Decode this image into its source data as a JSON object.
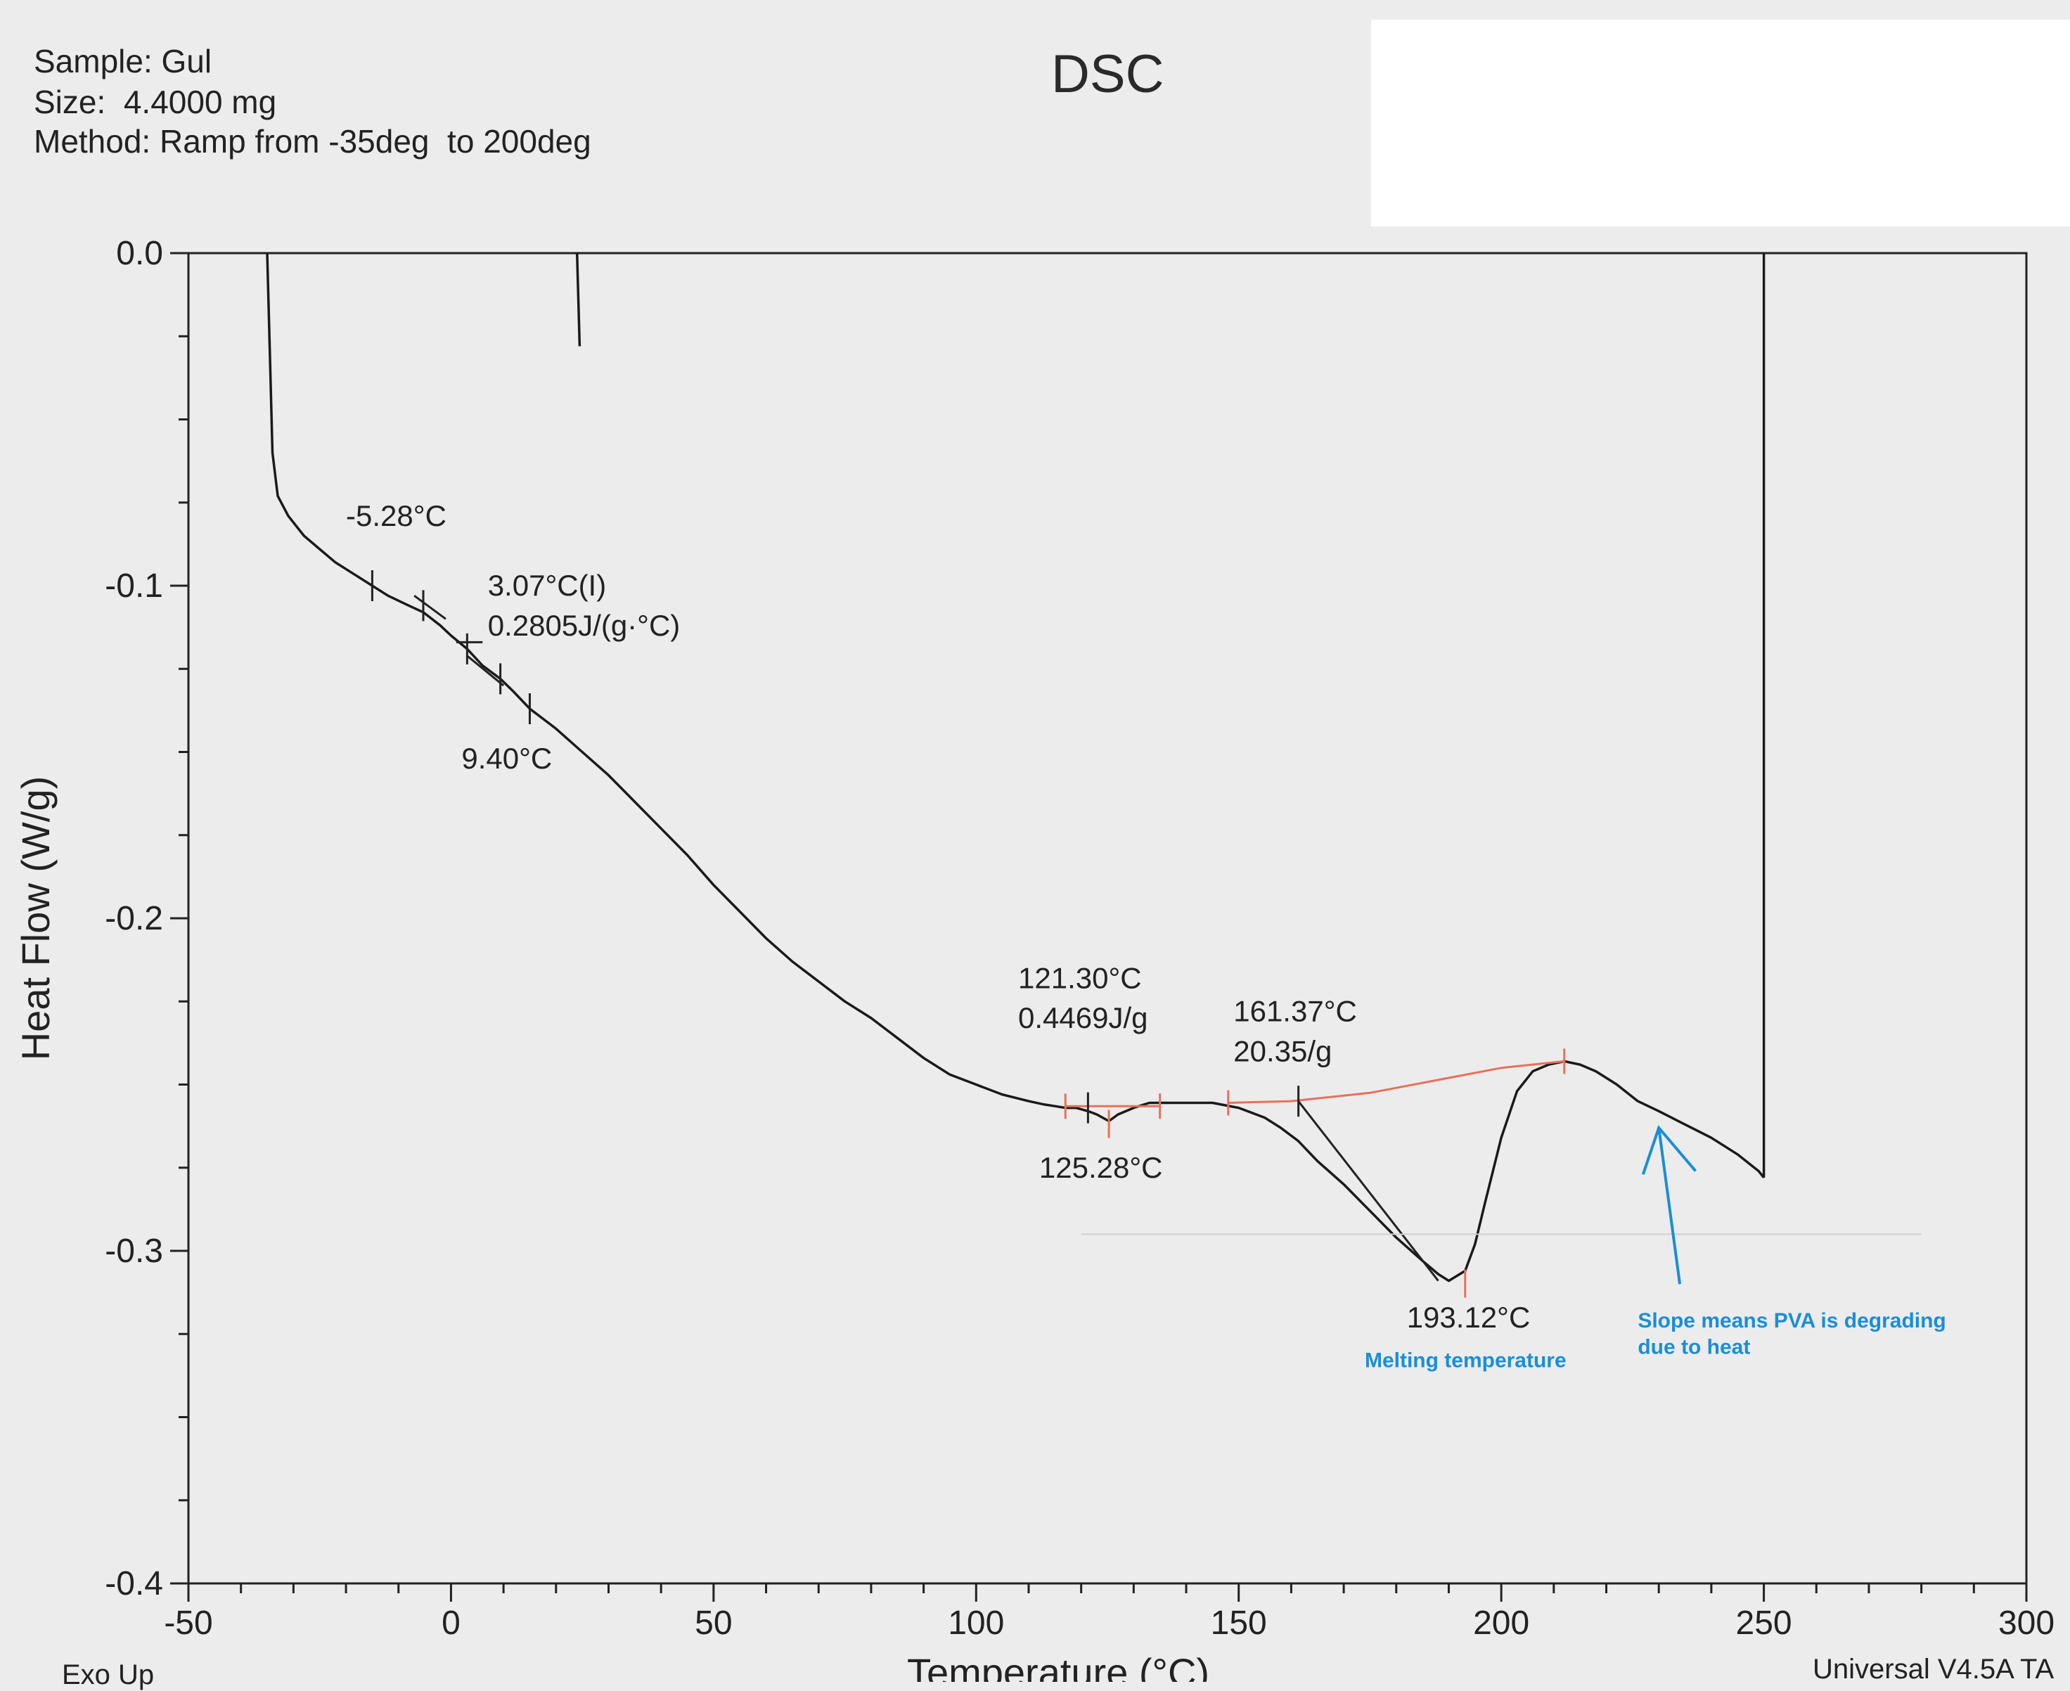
{
  "header": {
    "sample": "Sample: Gul",
    "size": "Size:  4.4000 mg",
    "method": "Method: Ramp from -35deg  to 200deg"
  },
  "footer": {
    "left": "Exo Up",
    "right": "Universal V4.5A TA"
  },
  "chart_data": {
    "type": "line",
    "title": "DSC",
    "xlabel": "Temperature (°C)",
    "ylabel": "Heat Flow (W/g)",
    "xlim": [
      -50,
      300
    ],
    "ylim": [
      -0.4,
      0.0
    ],
    "x_ticks": [
      "-50",
      "0",
      "50",
      "100",
      "150",
      "200",
      "250",
      "300"
    ],
    "y_ticks": [
      "0.0",
      "-0.1",
      "-0.2",
      "-0.3",
      "-0.4"
    ],
    "grid": false,
    "series": [
      {
        "color": "#1a1a1a",
        "x": [
          -35,
          -34.5,
          -34,
          -33,
          -31,
          -28,
          -25,
          -22,
          -18,
          -15,
          -12,
          -8,
          -5.28,
          -2,
          0,
          3.07,
          6,
          9.4,
          12,
          15,
          20,
          25,
          30,
          35,
          40,
          45,
          50,
          55,
          60,
          65,
          70,
          75,
          80,
          85,
          90,
          95,
          100,
          105,
          110,
          113,
          115,
          117,
          119,
          121.3,
          123,
          125.28,
          127,
          130,
          133,
          135,
          140,
          145,
          150,
          155,
          158,
          161.37,
          165,
          170,
          175,
          180,
          185,
          188,
          190,
          193.12,
          195,
          197,
          200,
          203,
          206,
          209,
          212,
          215,
          218,
          222,
          226,
          230,
          235,
          240,
          245,
          249,
          250
        ],
        "y": [
          0.0,
          -0.03,
          -0.06,
          -0.073,
          -0.079,
          -0.085,
          -0.089,
          -0.093,
          -0.097,
          -0.1,
          -0.103,
          -0.106,
          -0.108,
          -0.112,
          -0.115,
          -0.119,
          -0.124,
          -0.128,
          -0.132,
          -0.137,
          -0.143,
          -0.15,
          -0.157,
          -0.165,
          -0.173,
          -0.181,
          -0.19,
          -0.198,
          -0.206,
          -0.213,
          -0.219,
          -0.225,
          -0.23,
          -0.236,
          -0.242,
          -0.247,
          -0.25,
          -0.253,
          -0.255,
          -0.256,
          -0.2565,
          -0.257,
          -0.257,
          -0.258,
          -0.259,
          -0.261,
          -0.259,
          -0.257,
          -0.2555,
          -0.2555,
          -0.2555,
          -0.2555,
          -0.257,
          -0.26,
          -0.263,
          -0.267,
          -0.273,
          -0.28,
          -0.288,
          -0.296,
          -0.303,
          -0.307,
          -0.309,
          -0.306,
          -0.298,
          -0.285,
          -0.266,
          -0.252,
          -0.246,
          -0.244,
          -0.243,
          -0.244,
          -0.246,
          -0.25,
          -0.255,
          -0.258,
          -0.262,
          -0.266,
          -0.271,
          -0.276,
          -0.278
        ]
      },
      {
        "color": "#1a1a1a",
        "x": [
          250,
          250
        ],
        "y": [
          -0.278,
          0.0
        ]
      },
      {
        "color": "#1a1a1a",
        "x": [
          24,
          24.5
        ],
        "y": [
          0.0,
          -0.028
        ]
      }
    ],
    "annotations": [
      {
        "text": "-5.28°C",
        "x": -20,
        "y": -0.082
      },
      {
        "text": "3.07°C(I)",
        "x": 7,
        "y": -0.103
      },
      {
        "text": "0.2805J/(g·°C)",
        "x": 7,
        "y": -0.115
      },
      {
        "text": "9.40°C",
        "x": 2,
        "y": -0.155
      },
      {
        "text": "121.30°C",
        "x": 108,
        "y": -0.221
      },
      {
        "text": "0.4469J/g",
        "x": 108,
        "y": -0.233
      },
      {
        "text": "125.28°C",
        "x": 112,
        "y": -0.278
      },
      {
        "text": "161.37°C",
        "x": 149,
        "y": -0.231
      },
      {
        "text": "20.35/g",
        "x": 149,
        "y": -0.243
      },
      {
        "text": "193.12°C",
        "x": 182,
        "y": -0.323
      },
      {
        "text": "Melting temperature",
        "x": 174,
        "y": -0.335,
        "color": "#1a8ed6"
      },
      {
        "text": "Slope means PVA is degrading",
        "x": 226,
        "y": -0.323,
        "color": "#1a8ed6"
      },
      {
        "text": "due to heat",
        "x": 226,
        "y": -0.331,
        "color": "#1a8ed6"
      }
    ]
  }
}
